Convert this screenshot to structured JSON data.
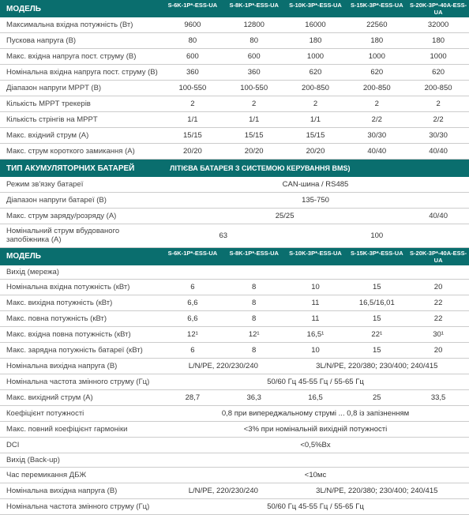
{
  "colors": {
    "header_bg": "#0a6e6e",
    "header_fg": "#ffffff",
    "border": "#cccccc",
    "text": "#333333"
  },
  "cols": [
    "S-6K-1P*-ESS-UA",
    "S-8K-1P*-ESS-UA",
    "S-10K-3P*-ESS-UA",
    "S-15K-3P*-ESS-UA",
    "S-20K-3P*-40A-ESS-UA"
  ],
  "s1": {
    "title": "МОДЕЛЬ",
    "rows": [
      {
        "label": "Максимальна вхідна потужність (Вт)",
        "v": [
          "9600",
          "12800",
          "16000",
          "22560",
          "32000"
        ]
      },
      {
        "label": "Пускова напруга (В)",
        "v": [
          "80",
          "80",
          "180",
          "180",
          "180"
        ]
      },
      {
        "label": "Макс. вхідна напруга пост. струму (В)",
        "v": [
          "600",
          "600",
          "1000",
          "1000",
          "1000"
        ]
      },
      {
        "label": "Номінальна вхідна напруга пост. струму (В)",
        "v": [
          "360",
          "360",
          "620",
          "620",
          "620"
        ]
      },
      {
        "label": "Діапазон напруги MPPT (В)",
        "v": [
          "100-550",
          "100-550",
          "200-850",
          "200-850",
          "200-850"
        ]
      },
      {
        "label": "Кількість MPPT трекерів",
        "v": [
          "2",
          "2",
          "2",
          "2",
          "2"
        ]
      },
      {
        "label": "Кількість  стрінгів на MPPT",
        "v": [
          "1/1",
          "1/1",
          "1/1",
          "2/2",
          "2/2"
        ]
      },
      {
        "label": "Макс. вхідний струм (A)",
        "v": [
          "15/15",
          "15/15",
          "15/15",
          "30/30",
          "30/30"
        ]
      },
      {
        "label": "Макс. струм короткого замикання (A)",
        "v": [
          "20/20",
          "20/20",
          "20/20",
          "40/40",
          "40/40"
        ]
      }
    ]
  },
  "s2": {
    "title": "ТИП АКУМУЛЯТОРНИХ БАТАРЕЙ",
    "subtitle": "ЛІТІЄВА БАТАРЕЯ З СИСТЕМОЮ КЕРУВАННЯ BMS)",
    "rows": [
      {
        "label": "Режим зв'язку батареї",
        "span": "all",
        "v": "CAN-шина / RS485"
      },
      {
        "label": "Діапазон напруги батареї (В)",
        "span": "all",
        "v": "135-750"
      },
      {
        "label": "Макс. струм заряду/розряду (A)",
        "layout": "4-1",
        "v": [
          "25/25",
          "40/40"
        ]
      },
      {
        "label": "Номінальний струм вбудованого запобіжника (A)",
        "layout": "2-3",
        "v": [
          "63",
          "100"
        ]
      }
    ]
  },
  "s3": {
    "title": "МОДЕЛЬ",
    "sub": "Вихід (мережа)",
    "rows": [
      {
        "label": "Номінальна вхідна потужність (кВт)",
        "v": [
          "6",
          "8",
          "10",
          "15",
          "20"
        ]
      },
      {
        "label": "Макс. вихідна потужність (кВт)",
        "v": [
          "6,6",
          "8",
          "11",
          "16,5/16,01",
          "22"
        ]
      },
      {
        "label": "Макс. повна потужність (кВт)",
        "v": [
          "6,6",
          "8",
          "11",
          "15",
          "22"
        ]
      },
      {
        "label": "Макс. вхідна повна потужність (кВт)",
        "v": [
          "12¹",
          "12¹",
          "16,5¹",
          "22¹",
          "30¹"
        ]
      },
      {
        "label": "Макс. зарядна потужність батареї (кВт)",
        "v": [
          "6",
          "8",
          "10",
          "15",
          "20"
        ]
      },
      {
        "label": "Номінальна вихідна напруга (В)",
        "layout": "2-3",
        "v": [
          "L/N/PE, 220/230/240",
          "3L/N/PE, 220/380;  230/400;  240/415"
        ]
      },
      {
        "label": "Номінальна частота змінного струму (Гц)",
        "span": "all",
        "v": "50/60 Гц 45-55 Гц / 55-65 Гц"
      },
      {
        "label": "Макс. вихідний струм (A)",
        "v": [
          "28,7",
          "36,3",
          "16,5",
          "25",
          "33,5"
        ]
      },
      {
        "label": "Коефіцієнт потужності",
        "span": "all",
        "v": "0,8 при випереджальному струмі ... 0,8 із запізненням"
      },
      {
        "label": "Макс. повний коефіцієнт гармоніки",
        "span": "all",
        "v": "<3% при номінальній вихідній потужності"
      },
      {
        "label": "DCI",
        "span": "all",
        "v": "<0,5%Bx"
      }
    ],
    "sub2": "Вихід (Back-up)",
    "rows2": [
      {
        "label": "Час перемикання ДБЖ",
        "span": "all",
        "v": "<10мс"
      },
      {
        "label": "Номінальна вихідна напруга (В)",
        "layout": "2-3",
        "v": [
          "L/N/PE, 220/230/240",
          "3L/N/PE, 220/380;  230/400;  240/415"
        ]
      },
      {
        "label": "Номінальна частота змінного струму (Гц)",
        "span": "all",
        "v": "50/60 Гц 45-55 Гц / 55-65 Гц"
      }
    ]
  }
}
